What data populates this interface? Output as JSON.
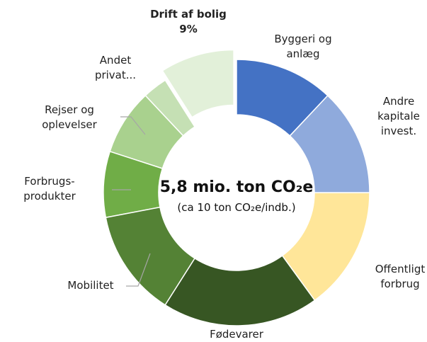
{
  "chart_data": {
    "type": "donut",
    "title": "5,8 mio. ton CO₂e",
    "subtitle": "(ca 10 ton CO₂e/indb.)",
    "categories": [
      "Byggeri og anlæg",
      "Andre kapitale invest.",
      "Offentligt forbrug",
      "Fødevarer",
      "Mobilitet",
      "Forbrugs-produkter",
      "Rejser og oplevelser",
      "Andet privat...",
      "Drift af bolig"
    ],
    "values": [
      12,
      13,
      15,
      19,
      13,
      8,
      8,
      3,
      9
    ],
    "value_labels": [
      null,
      null,
      null,
      null,
      null,
      null,
      null,
      null,
      "9%"
    ],
    "colors": [
      "#4472c4",
      "#8faadc",
      "#ffe699",
      "#375623",
      "#548235",
      "#70ad47",
      "#a9d18e",
      "#c5e0b4",
      "#e2f0d9"
    ],
    "exploded": [
      8
    ]
  }
}
